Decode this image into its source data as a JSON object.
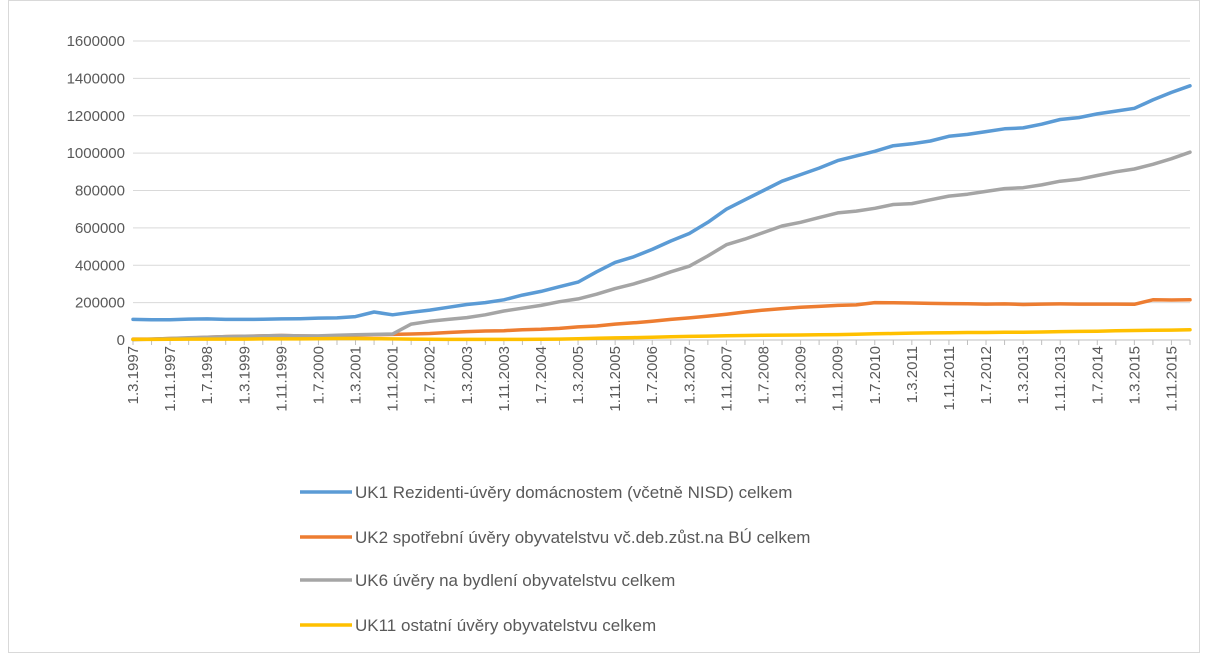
{
  "chart_data": {
    "type": "line",
    "categories": [
      "1.3.1997",
      null,
      "1.11.1997",
      null,
      "1.7.1998",
      null,
      "1.3.1999",
      null,
      "1.11.1999",
      null,
      "1.7.2000",
      null,
      "1.3.2001",
      null,
      "1.11.2001",
      null,
      "1.7.2002",
      null,
      "1.3.2003",
      null,
      "1.11.2003",
      null,
      "1.7.2004",
      null,
      "1.3.2005",
      null,
      "1.11.2005",
      null,
      "1.7.2006",
      null,
      "1.3.2007",
      null,
      "1.11.2007",
      null,
      "1.7.2008",
      null,
      "1.3.2009",
      null,
      "1.11.2009",
      null,
      "1.7.2010",
      null,
      "1.3.2011",
      null,
      "1.11.2011",
      null,
      "1.7.2012",
      null,
      "1.3.2013",
      null,
      "1.11.2013",
      null,
      "1.7.2014",
      null,
      "1.3.2015",
      null,
      "1.11.2015",
      null
    ],
    "series": [
      {
        "name": "UK1 Rezidenti-úvěry domácnostem (včetně NISD) celkem",
        "color": "#5b9bd5",
        "values": [
          110000,
          108000,
          108000,
          112000,
          113000,
          110000,
          110000,
          111000,
          113000,
          114000,
          117000,
          118000,
          125000,
          150000,
          135000,
          148000,
          160000,
          175000,
          190000,
          200000,
          215000,
          240000,
          260000,
          285000,
          310000,
          365000,
          415000,
          445000,
          485000,
          530000,
          570000,
          630000,
          700000,
          750000,
          800000,
          850000,
          885000,
          920000,
          960000,
          985000,
          1010000,
          1040000,
          1050000,
          1065000,
          1090000,
          1100000,
          1115000,
          1130000,
          1135000,
          1155000,
          1180000,
          1190000,
          1210000,
          1225000,
          1240000,
          1285000,
          1325000,
          1360000
        ]
      },
      {
        "name": "UK2 spotřební úvěry obyvatelstvu vč.deb.zůst.na BÚ celkem",
        "color": "#ed7d31",
        "values": [
          5000,
          5000,
          8000,
          10000,
          15000,
          18000,
          20000,
          22000,
          24000,
          22000,
          20000,
          22000,
          25000,
          28000,
          30000,
          32000,
          35000,
          40000,
          45000,
          48000,
          50000,
          55000,
          57000,
          62000,
          70000,
          75000,
          85000,
          92000,
          100000,
          110000,
          118000,
          128000,
          138000,
          150000,
          160000,
          168000,
          175000,
          180000,
          185000,
          188000,
          200000,
          199000,
          198000,
          196000,
          195000,
          194000,
          192000,
          193000,
          190000,
          192000,
          193000,
          192000,
          192000,
          192000,
          191000,
          215000,
          214000,
          215000
        ]
      },
      {
        "name": "UK6 úvěry na bydlení obyvatelstvu celkem",
        "color": "#a5a5a5",
        "values": [
          2000,
          5000,
          8000,
          12000,
          15000,
          18000,
          20000,
          22000,
          24000,
          22000,
          22000,
          25000,
          28000,
          30000,
          32000,
          85000,
          100000,
          110000,
          120000,
          135000,
          155000,
          170000,
          185000,
          205000,
          220000,
          245000,
          275000,
          300000,
          330000,
          365000,
          395000,
          450000,
          510000,
          540000,
          575000,
          610000,
          630000,
          655000,
          680000,
          690000,
          705000,
          725000,
          730000,
          750000,
          770000,
          780000,
          795000,
          810000,
          815000,
          830000,
          850000,
          860000,
          880000,
          900000,
          915000,
          940000,
          970000,
          1005000
        ]
      },
      {
        "name": "UK11 ostatní úvěry obyvatelstvu celkem",
        "color": "#ffc000",
        "values": [
          3000,
          3000,
          4000,
          5000,
          5000,
          5000,
          5000,
          6000,
          6000,
          6000,
          7000,
          8000,
          8000,
          7000,
          6000,
          5000,
          4000,
          3000,
          3000,
          3000,
          3000,
          3000,
          4000,
          5000,
          7000,
          9000,
          11000,
          13000,
          15000,
          17000,
          19000,
          21000,
          23000,
          24000,
          25000,
          26000,
          27000,
          28000,
          29000,
          31000,
          33000,
          35000,
          37000,
          38000,
          39000,
          40000,
          40000,
          41000,
          42000,
          43000,
          45000,
          46000,
          47000,
          49000,
          51000,
          52000,
          53000,
          55000
        ]
      }
    ],
    "ylim": [
      0,
      1600000
    ],
    "yticks": [
      0,
      200000,
      400000,
      600000,
      800000,
      1000000,
      1200000,
      1400000,
      1600000
    ],
    "grid": true
  }
}
